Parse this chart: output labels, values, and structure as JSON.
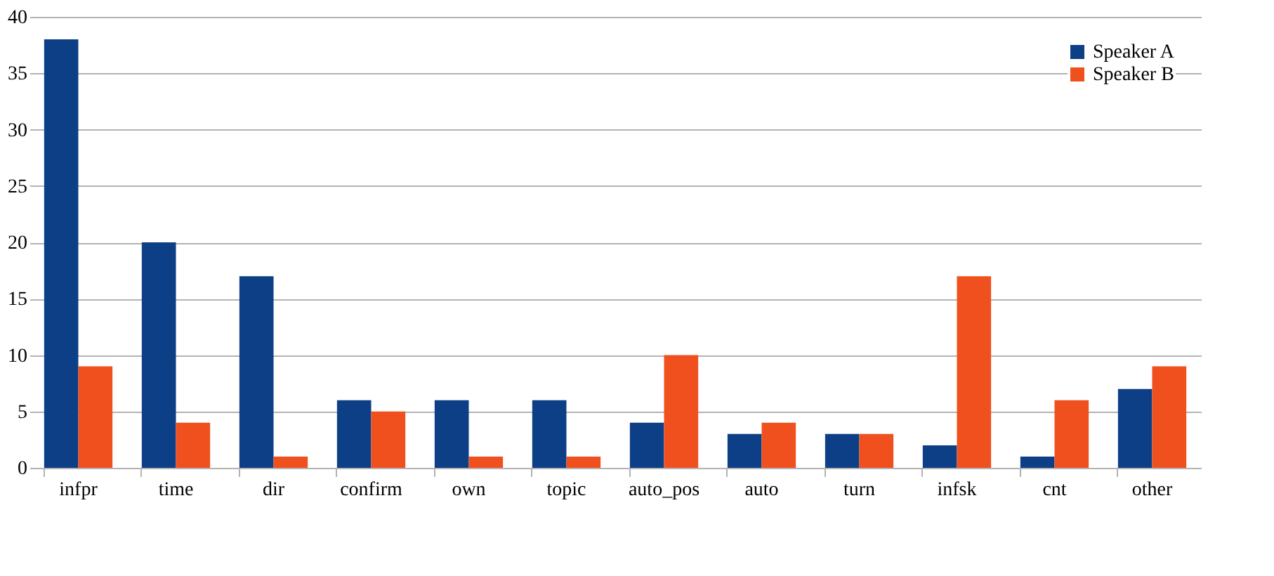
{
  "chart_data": {
    "type": "bar",
    "categories": [
      "infpr",
      "time",
      "dir",
      "confirm",
      "own",
      "topic",
      "auto_pos",
      "auto",
      "turn",
      "infsk",
      "cnt",
      "other"
    ],
    "series": [
      {
        "name": "Speaker A",
        "color": "#0d3f86",
        "values": [
          38,
          20,
          17,
          6,
          6,
          6,
          4,
          3,
          3,
          2,
          1,
          7
        ]
      },
      {
        "name": "Speaker B",
        "color": "#f0501e",
        "values": [
          9,
          4,
          1,
          5,
          1,
          1,
          10,
          4,
          3,
          17,
          6,
          9
        ]
      }
    ],
    "ylim": [
      0,
      40
    ],
    "yticks": [
      0,
      5,
      10,
      15,
      20,
      25,
      30,
      35,
      40
    ],
    "grid": "y",
    "legend": "top right"
  }
}
